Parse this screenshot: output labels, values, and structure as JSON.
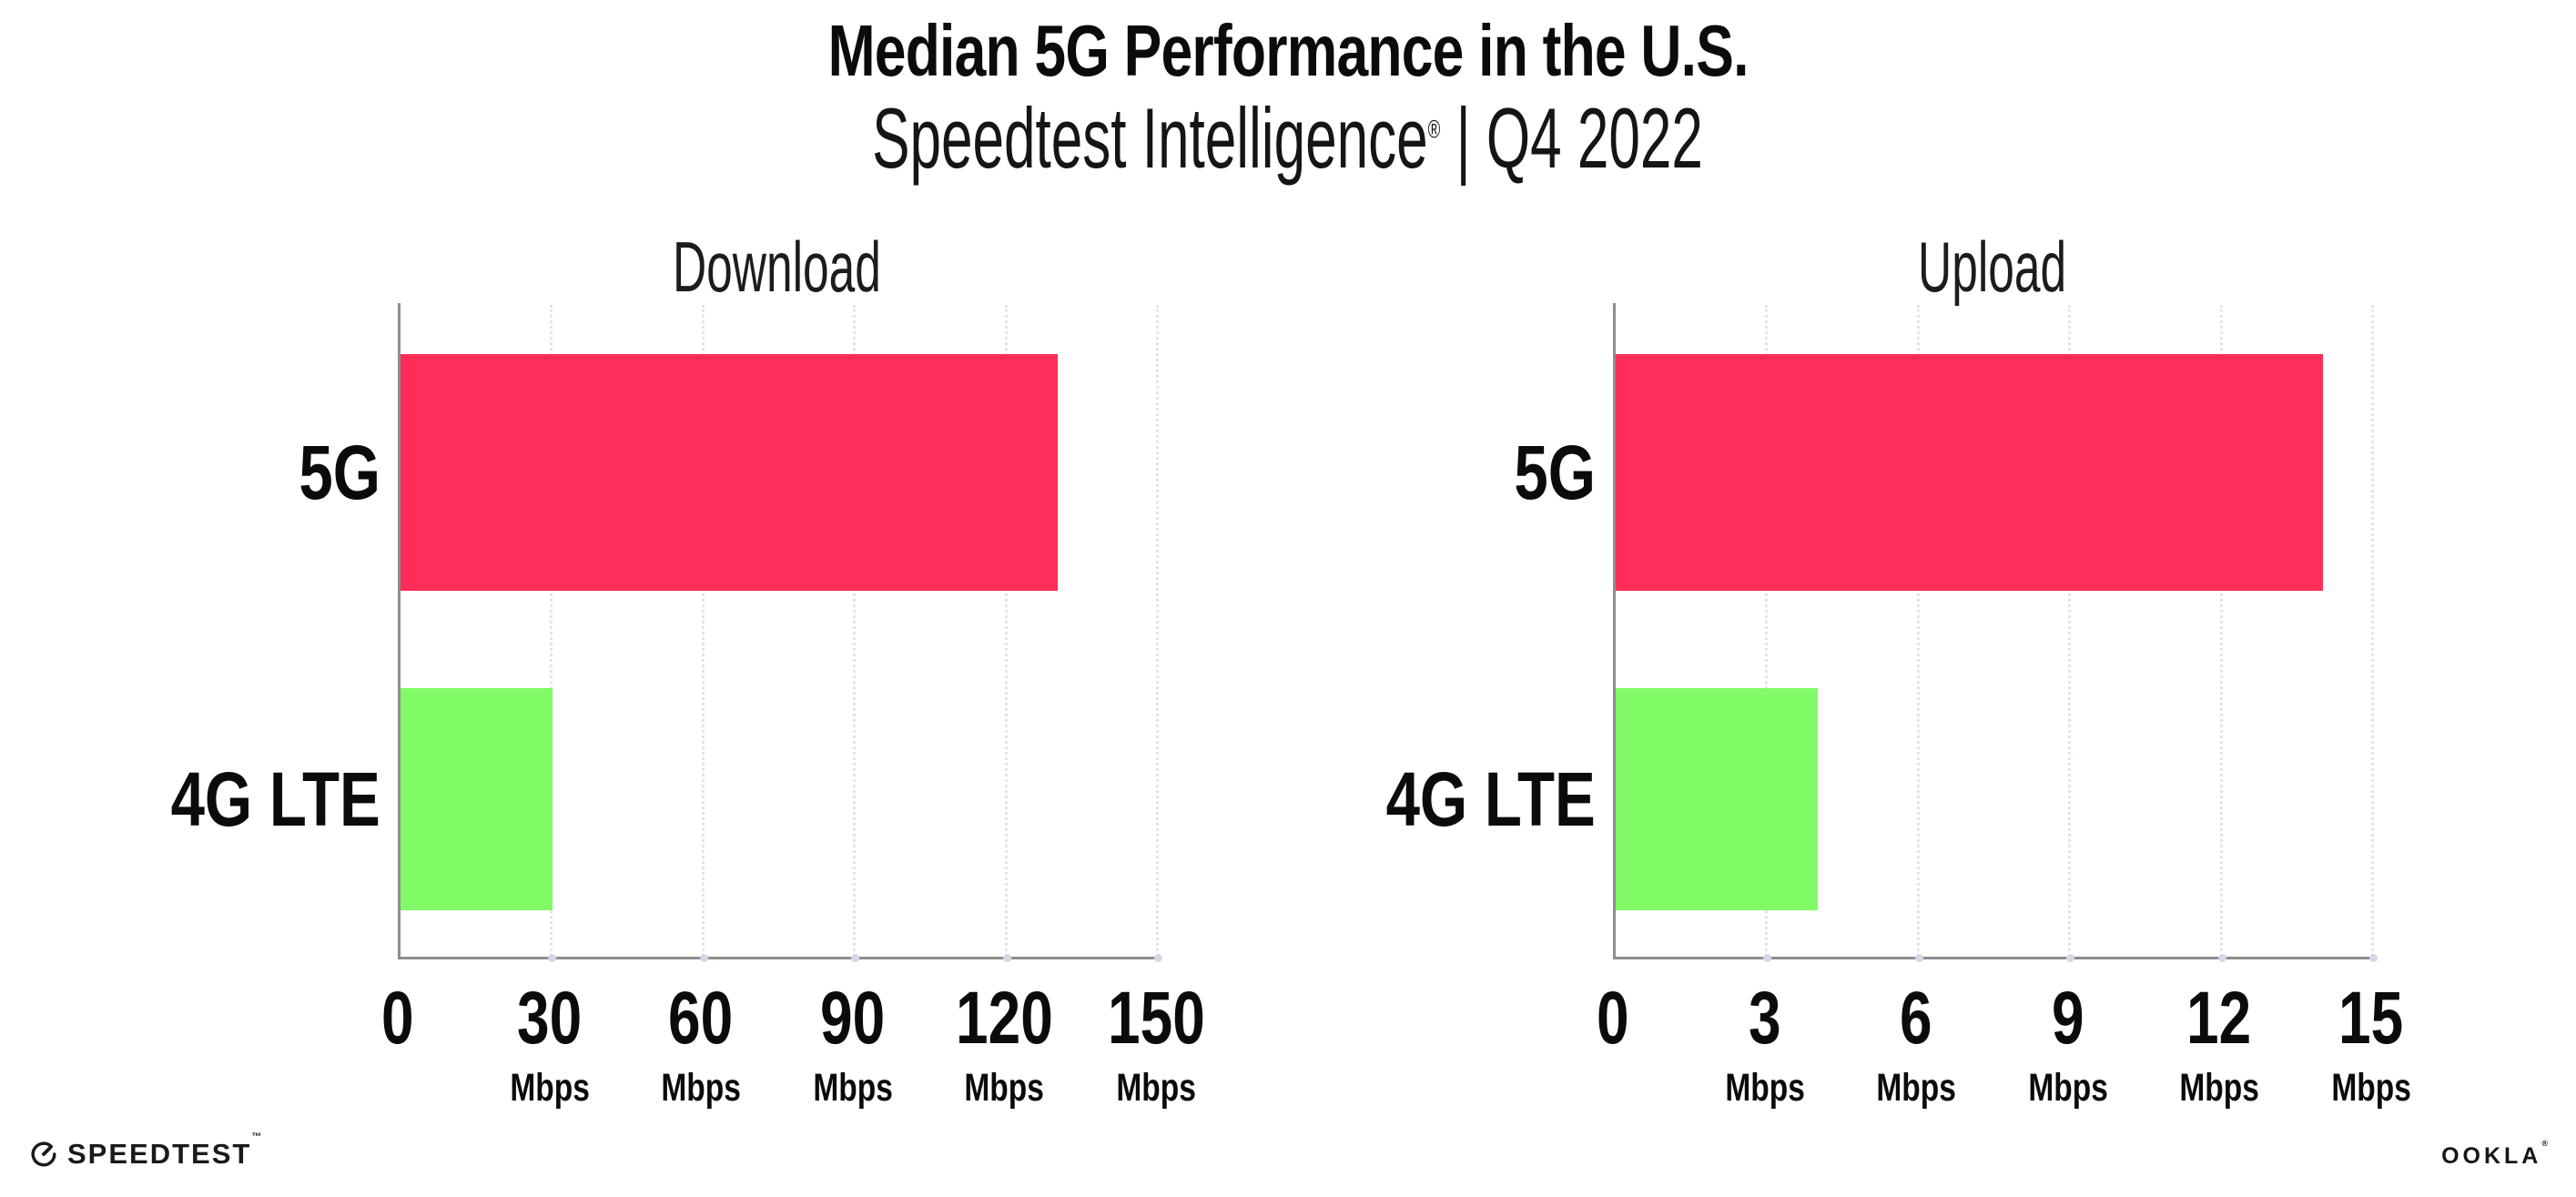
{
  "title": "Median 5G Performance in the U.S.",
  "subtitle": {
    "brand": "Speedtest Intelligence",
    "reg_mark": "®",
    "rest": " | Q4 2022"
  },
  "chart_data": [
    {
      "type": "bar",
      "orientation": "horizontal",
      "title": "Download",
      "categories": [
        "5G",
        "4G LTE"
      ],
      "values": [
        130,
        30
      ],
      "unit": "Mbps",
      "xlim": [
        0,
        150
      ],
      "xticks": [
        0,
        30,
        60,
        90,
        120,
        150
      ],
      "grid": "dotted-vertical",
      "legend": "none",
      "bar_colors": [
        "#FF2D58",
        "#80FB66"
      ]
    },
    {
      "type": "bar",
      "orientation": "horizontal",
      "title": "Upload",
      "categories": [
        "5G",
        "4G LTE"
      ],
      "values": [
        14,
        4
      ],
      "unit": "Mbps",
      "xlim": [
        0,
        15
      ],
      "xticks": [
        0,
        3,
        6,
        9,
        12,
        15
      ],
      "grid": "dotted-vertical",
      "legend": "none",
      "bar_colors": [
        "#FF2D58",
        "#80FB66"
      ]
    }
  ],
  "colors": {
    "bar_5g": "#FF2D58",
    "bar_4g_lte": "#80FB66",
    "axis_line": "#8e8e8e",
    "gridline": "#e3e3ee",
    "background": "#ffffff",
    "text": "#0b0b0b"
  },
  "footer": {
    "speedtest_label": "SPEEDTEST",
    "speedtest_mark": "™",
    "ookla_label": "OOKLA",
    "ookla_mark": "®"
  }
}
